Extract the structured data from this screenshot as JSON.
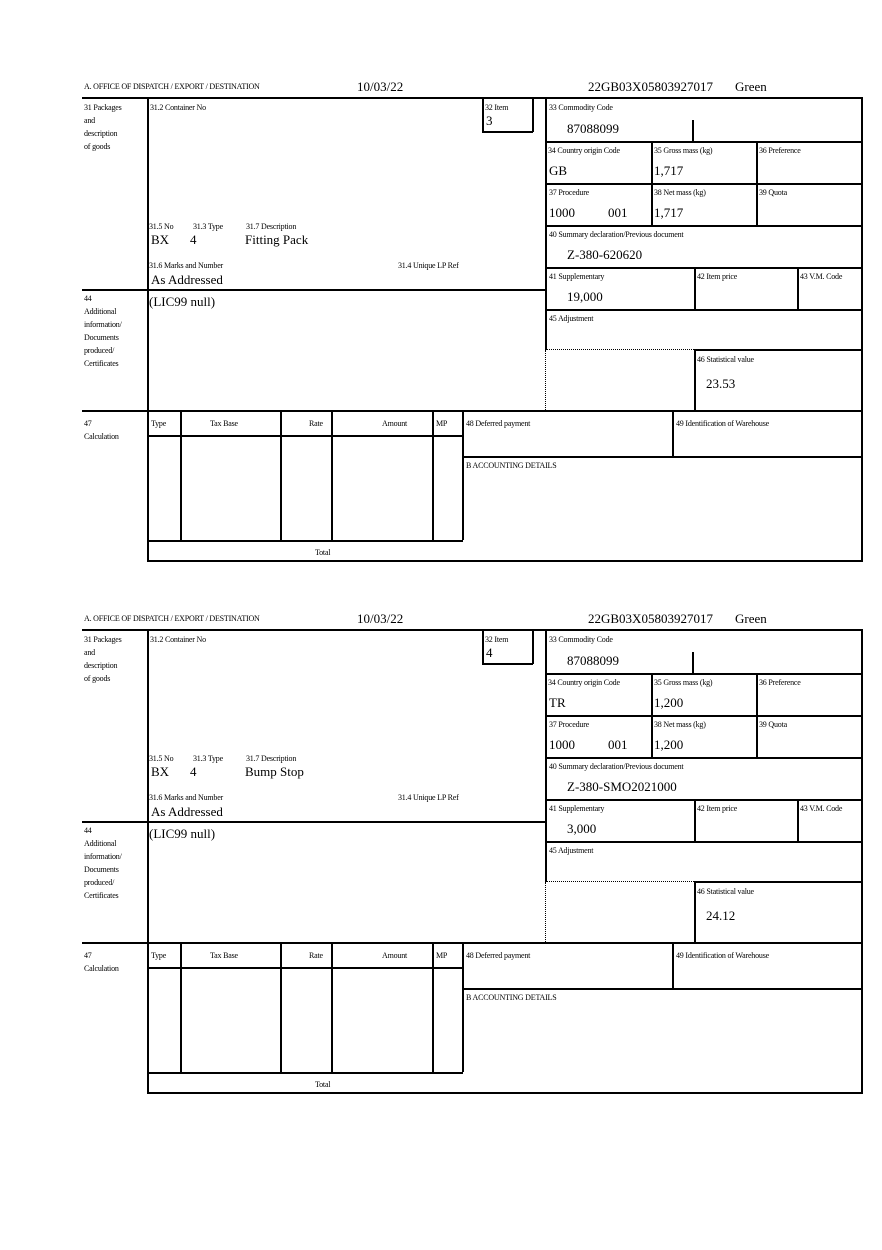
{
  "labels": {
    "office": "A.  OFFICE OF DISPATCH / EXPORT / DESTINATION",
    "packages": [
      "31 Packages",
      "and",
      "description",
      "of goods"
    ],
    "container_no": "31.2 Container No",
    "item": "32 Item",
    "no": "31.5 No",
    "type": "31.3 Type",
    "description": "31.7 Description",
    "marks": "31.6 Marks and Number",
    "unique_lp": "31.4 Unique LP Ref",
    "additional": [
      "44",
      "Additional",
      "information/",
      "Documents",
      "produced/",
      "Certificates"
    ],
    "commodity": "33 Commodity Code",
    "country": "34 Country origin Code",
    "gross": "35 Gross mass (kg)",
    "preference": "36 Preference",
    "procedure": "37 Procedure",
    "net": "38 Net mass (kg)",
    "quota": "39 Quota",
    "summary": "40 Summary declaration/Previous document",
    "supplementary": "41 Supplementary",
    "item_price": "42 Item price",
    "vm_code": "43 V.M. Code",
    "adjustment": "45 Adjustment",
    "statistical": "46 Statistical value",
    "calculation": [
      "47",
      "Calculation"
    ],
    "calc_cols": [
      "Type",
      "Tax Base",
      "Rate",
      "Amount",
      "MP"
    ],
    "total": "Total",
    "deferred": "48 Deferred payment",
    "warehouse": "49 Identification of Warehouse",
    "accounting": "B ACCOUNTING DETAILS"
  },
  "forms": [
    {
      "date": "10/03/22",
      "reference": "22GB03X05803927017",
      "route": "Green",
      "item": "3",
      "pkg_no": "BX",
      "pkg_type": "4",
      "description": "Fitting Pack",
      "marks": "As Addressed",
      "additional_info": "(LIC99 null)",
      "commodity": "87088099",
      "country": "GB",
      "gross": "1,717",
      "procedure": "1000",
      "procedure_add": "001",
      "net": "1,717",
      "summary": "Z-380-620620",
      "supplementary": "19,000",
      "statistical": "23.53"
    },
    {
      "date": "10/03/22",
      "reference": "22GB03X05803927017",
      "route": "Green",
      "item": "4",
      "pkg_no": "BX",
      "pkg_type": "4",
      "description": "Bump Stop",
      "marks": "As Addressed",
      "additional_info": "(LIC99 null)",
      "commodity": "87088099",
      "country": "TR",
      "gross": "1,200",
      "procedure": "1000",
      "procedure_add": "001",
      "net": "1,200",
      "summary": "Z-380-SMO2021000",
      "supplementary": "3,000",
      "statistical": "24.12"
    }
  ]
}
